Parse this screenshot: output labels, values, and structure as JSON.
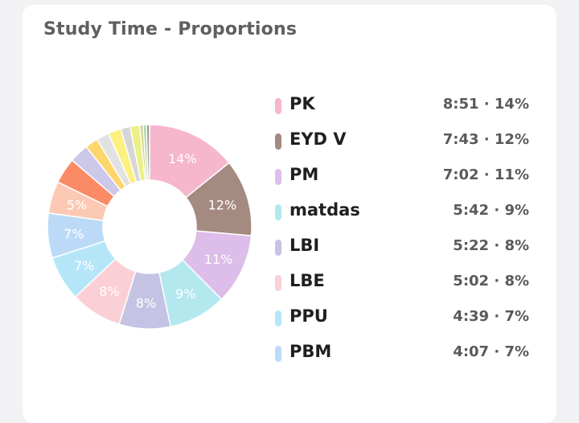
{
  "title": "Study Time - Proportions",
  "chart_data": {
    "type": "pie",
    "variant": "donut",
    "title": "Study Time - Proportions",
    "start": "top, clockwise",
    "slices": [
      {
        "label": "PK",
        "value": 14,
        "time": "8:51",
        "pct_label": "14%",
        "color": "#f6b6cc",
        "label_color": "#ffffff"
      },
      {
        "label": "EYD V",
        "value": 12,
        "time": "7:43",
        "pct_label": "12%",
        "color": "#a48a80",
        "label_color": "#ffffff"
      },
      {
        "label": "PM",
        "value": 11,
        "time": "7:02",
        "pct_label": "11%",
        "color": "#ddbde9",
        "label_color": "#ffffff"
      },
      {
        "label": "matdas",
        "value": 9,
        "time": "5:42",
        "pct_label": "9%",
        "color": "#b3e8ef",
        "label_color": "#ffffff"
      },
      {
        "label": "LBI",
        "value": 8,
        "time": "5:22",
        "pct_label": "8%",
        "color": "#c4c3e3",
        "label_color": "#ffffff"
      },
      {
        "label": "LBE",
        "value": 8,
        "time": "5:02",
        "pct_label": "8%",
        "color": "#fbcfd6",
        "label_color": "#ffffff"
      },
      {
        "label": "PPU",
        "value": 7,
        "time": "4:39",
        "pct_label": "7%",
        "color": "#b5e6f8",
        "label_color": "#ffffff"
      },
      {
        "label": "PBM",
        "value": 7,
        "time": "4:07",
        "pct_label": "7%",
        "color": "#bcdaf8",
        "label_color": "#ffffff"
      },
      {
        "value": 5,
        "pct_label": "5%",
        "color": "#fcc9b5",
        "label_color": "#ffffff"
      },
      {
        "value": 4,
        "color": "#fb8a66"
      },
      {
        "value": 3,
        "color": "#cdc7ea"
      },
      {
        "value": 2,
        "color": "#fdd66c"
      },
      {
        "value": 2,
        "color": "#e2e2e2"
      },
      {
        "value": 2,
        "color": "#fdf080"
      },
      {
        "value": 1.5,
        "color": "#d6d6d6"
      },
      {
        "value": 1.5,
        "color": "#eaf085"
      },
      {
        "value": 0.5,
        "color": "#cfd08a"
      },
      {
        "value": 0.5,
        "color": "#a8d8a0"
      },
      {
        "value": 0.5,
        "color": "#9e9e9e"
      }
    ]
  }
}
